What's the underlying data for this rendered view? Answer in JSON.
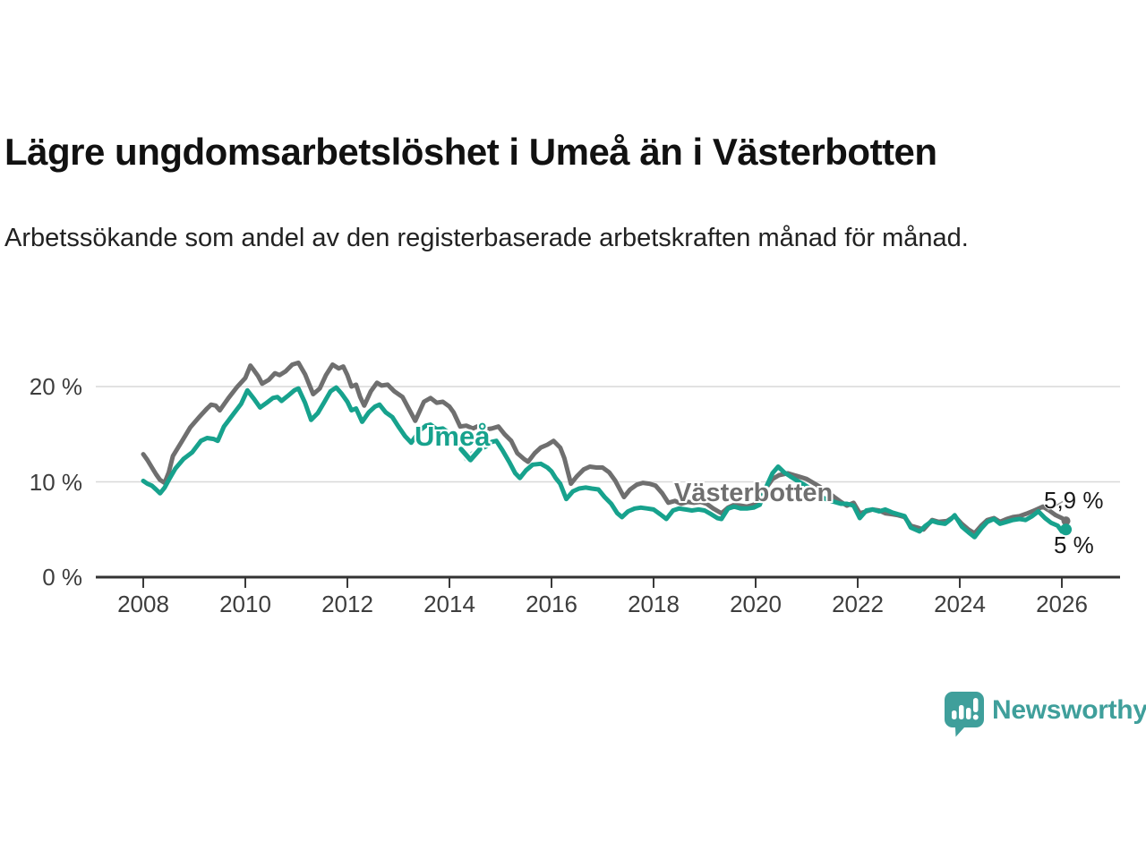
{
  "header": {
    "title": "Lägre ungdomsarbetslöshet i Umeå än i Västerbotten",
    "subtitle": "Arbetssökande som andel av den registerbaserade arbetskraften månad för månad."
  },
  "chart_data": {
    "type": "line",
    "unit": "%",
    "grid": "horizontal",
    "legend_position": "inline-annotations",
    "x_axis": {
      "ticks": [
        2008,
        2010,
        2012,
        2014,
        2016,
        2018,
        2020,
        2022,
        2024,
        2026
      ],
      "range": [
        2007.8,
        2026.3
      ]
    },
    "y_axis": {
      "ticks": [
        {
          "label": "20 %",
          "value": 20
        },
        {
          "label": "10 %",
          "value": 10
        },
        {
          "label": "0 %",
          "value": 0
        }
      ],
      "range": [
        0,
        23.5
      ]
    },
    "series": [
      {
        "name": "Västerbotten",
        "color": "#6f6f6f",
        "end_label": "5,9 %",
        "points": [
          [
            2008.0,
            12.9
          ],
          [
            2008.08,
            12.3
          ],
          [
            2008.17,
            11.5
          ],
          [
            2008.25,
            10.8
          ],
          [
            2008.33,
            10.2
          ],
          [
            2008.42,
            9.9
          ],
          [
            2008.5,
            11.0
          ],
          [
            2008.58,
            12.7
          ],
          [
            2008.75,
            14.2
          ],
          [
            2008.92,
            15.7
          ],
          [
            2009.08,
            16.7
          ],
          [
            2009.25,
            17.7
          ],
          [
            2009.33,
            18.1
          ],
          [
            2009.42,
            18.0
          ],
          [
            2009.5,
            17.5
          ],
          [
            2009.67,
            18.8
          ],
          [
            2009.83,
            19.9
          ],
          [
            2010.0,
            20.9
          ],
          [
            2010.1,
            22.2
          ],
          [
            2010.17,
            21.7
          ],
          [
            2010.25,
            21.1
          ],
          [
            2010.33,
            20.3
          ],
          [
            2010.46,
            20.7
          ],
          [
            2010.58,
            21.4
          ],
          [
            2010.67,
            21.2
          ],
          [
            2010.79,
            21.6
          ],
          [
            2010.92,
            22.3
          ],
          [
            2011.04,
            22.5
          ],
          [
            2011.17,
            21.3
          ],
          [
            2011.33,
            19.2
          ],
          [
            2011.46,
            19.8
          ],
          [
            2011.58,
            21.2
          ],
          [
            2011.71,
            22.3
          ],
          [
            2011.83,
            21.9
          ],
          [
            2011.92,
            22.1
          ],
          [
            2012.0,
            21.2
          ],
          [
            2012.08,
            20.0
          ],
          [
            2012.17,
            20.2
          ],
          [
            2012.25,
            18.9
          ],
          [
            2012.33,
            18.0
          ],
          [
            2012.46,
            19.5
          ],
          [
            2012.58,
            20.4
          ],
          [
            2012.67,
            20.1
          ],
          [
            2012.79,
            20.2
          ],
          [
            2012.92,
            19.5
          ],
          [
            2013.08,
            18.9
          ],
          [
            2013.25,
            17.2
          ],
          [
            2013.33,
            16.4
          ],
          [
            2013.5,
            18.4
          ],
          [
            2013.63,
            18.8
          ],
          [
            2013.75,
            18.3
          ],
          [
            2013.87,
            18.4
          ],
          [
            2014.0,
            17.9
          ],
          [
            2014.08,
            17.3
          ],
          [
            2014.21,
            15.8
          ],
          [
            2014.33,
            15.9
          ],
          [
            2014.46,
            15.6
          ],
          [
            2014.58,
            15.9
          ],
          [
            2014.71,
            15.5
          ],
          [
            2014.83,
            15.6
          ],
          [
            2014.96,
            15.8
          ],
          [
            2015.08,
            15.0
          ],
          [
            2015.21,
            14.3
          ],
          [
            2015.33,
            13.0
          ],
          [
            2015.46,
            12.4
          ],
          [
            2015.54,
            12.1
          ],
          [
            2015.67,
            13.0
          ],
          [
            2015.79,
            13.6
          ],
          [
            2015.92,
            13.9
          ],
          [
            2016.04,
            14.3
          ],
          [
            2016.17,
            13.6
          ],
          [
            2016.25,
            12.5
          ],
          [
            2016.38,
            9.8
          ],
          [
            2016.5,
            10.6
          ],
          [
            2016.63,
            11.3
          ],
          [
            2016.75,
            11.6
          ],
          [
            2016.88,
            11.5
          ],
          [
            2017.0,
            11.5
          ],
          [
            2017.13,
            11.0
          ],
          [
            2017.25,
            10.1
          ],
          [
            2017.42,
            8.4
          ],
          [
            2017.54,
            9.2
          ],
          [
            2017.67,
            9.7
          ],
          [
            2017.79,
            9.9
          ],
          [
            2017.92,
            9.8
          ],
          [
            2018.04,
            9.6
          ],
          [
            2018.17,
            8.8
          ],
          [
            2018.29,
            7.8
          ],
          [
            2018.42,
            8.0
          ],
          [
            2018.54,
            7.7
          ],
          [
            2018.67,
            7.9
          ],
          [
            2018.79,
            7.8
          ],
          [
            2018.92,
            7.9
          ],
          [
            2019.04,
            7.7
          ],
          [
            2019.17,
            7.2
          ],
          [
            2019.33,
            6.7
          ],
          [
            2019.46,
            7.3
          ],
          [
            2019.58,
            7.6
          ],
          [
            2019.71,
            7.5
          ],
          [
            2019.83,
            7.4
          ],
          [
            2019.96,
            7.6
          ],
          [
            2020.08,
            8.1
          ],
          [
            2020.21,
            9.4
          ],
          [
            2020.33,
            10.3
          ],
          [
            2020.46,
            10.7
          ],
          [
            2020.63,
            10.9
          ],
          [
            2020.75,
            10.7
          ],
          [
            2020.88,
            10.5
          ],
          [
            2021.0,
            10.3
          ],
          [
            2021.13,
            9.9
          ],
          [
            2021.25,
            9.5
          ],
          [
            2021.42,
            8.9
          ],
          [
            2021.54,
            8.4
          ],
          [
            2021.67,
            7.9
          ],
          [
            2021.79,
            7.5
          ],
          [
            2021.92,
            7.8
          ],
          [
            2022.04,
            6.7
          ],
          [
            2022.17,
            6.9
          ],
          [
            2022.29,
            7.1
          ],
          [
            2022.42,
            7.0
          ],
          [
            2022.54,
            6.7
          ],
          [
            2022.67,
            6.6
          ],
          [
            2022.79,
            6.5
          ],
          [
            2022.92,
            6.3
          ],
          [
            2023.04,
            5.4
          ],
          [
            2023.17,
            5.2
          ],
          [
            2023.29,
            5.0
          ],
          [
            2023.46,
            6.0
          ],
          [
            2023.58,
            5.8
          ],
          [
            2023.75,
            5.9
          ],
          [
            2023.9,
            6.4
          ],
          [
            2024.04,
            5.6
          ],
          [
            2024.17,
            5.0
          ],
          [
            2024.29,
            4.6
          ],
          [
            2024.42,
            5.4
          ],
          [
            2024.54,
            6.0
          ],
          [
            2024.67,
            6.2
          ],
          [
            2024.79,
            5.8
          ],
          [
            2024.92,
            6.1
          ],
          [
            2025.04,
            6.3
          ],
          [
            2025.17,
            6.4
          ],
          [
            2025.33,
            6.7
          ],
          [
            2025.46,
            7.0
          ],
          [
            2025.63,
            7.4
          ],
          [
            2025.75,
            7.0
          ],
          [
            2025.88,
            6.5
          ],
          [
            2026.0,
            6.2
          ],
          [
            2026.08,
            5.9
          ]
        ]
      },
      {
        "name": "Umeå",
        "color": "#17a28d",
        "end_label": "5 %",
        "points": [
          [
            2008.0,
            10.1
          ],
          [
            2008.08,
            9.8
          ],
          [
            2008.17,
            9.6
          ],
          [
            2008.25,
            9.2
          ],
          [
            2008.33,
            8.8
          ],
          [
            2008.42,
            9.4
          ],
          [
            2008.5,
            10.2
          ],
          [
            2008.63,
            11.4
          ],
          [
            2008.79,
            12.4
          ],
          [
            2008.96,
            13.1
          ],
          [
            2009.13,
            14.3
          ],
          [
            2009.25,
            14.6
          ],
          [
            2009.38,
            14.5
          ],
          [
            2009.46,
            14.3
          ],
          [
            2009.58,
            15.8
          ],
          [
            2009.75,
            17.0
          ],
          [
            2009.92,
            18.2
          ],
          [
            2010.04,
            19.6
          ],
          [
            2010.17,
            18.7
          ],
          [
            2010.29,
            17.8
          ],
          [
            2010.42,
            18.3
          ],
          [
            2010.54,
            18.8
          ],
          [
            2010.63,
            18.9
          ],
          [
            2010.71,
            18.5
          ],
          [
            2010.83,
            19.0
          ],
          [
            2010.96,
            19.6
          ],
          [
            2011.04,
            19.8
          ],
          [
            2011.17,
            18.3
          ],
          [
            2011.29,
            16.5
          ],
          [
            2011.42,
            17.2
          ],
          [
            2011.54,
            18.3
          ],
          [
            2011.67,
            19.5
          ],
          [
            2011.78,
            19.9
          ],
          [
            2011.88,
            19.3
          ],
          [
            2012.0,
            18.4
          ],
          [
            2012.08,
            17.5
          ],
          [
            2012.17,
            17.7
          ],
          [
            2012.29,
            16.3
          ],
          [
            2012.42,
            17.3
          ],
          [
            2012.54,
            17.9
          ],
          [
            2012.63,
            18.1
          ],
          [
            2012.75,
            17.3
          ],
          [
            2012.88,
            16.8
          ],
          [
            2013.0,
            15.8
          ],
          [
            2013.13,
            14.8
          ],
          [
            2013.25,
            14.1
          ],
          [
            2013.42,
            15.4
          ],
          [
            2013.54,
            15.9
          ],
          [
            2013.63,
            16.0
          ],
          [
            2013.75,
            15.5
          ],
          [
            2013.87,
            15.6
          ],
          [
            2014.0,
            15.1
          ],
          [
            2014.08,
            14.8
          ],
          [
            2014.21,
            13.5
          ],
          [
            2014.33,
            12.4
          ],
          [
            2014.46,
            13.0
          ],
          [
            2014.58,
            13.4
          ],
          [
            2014.71,
            13.7
          ],
          [
            2014.83,
            14.2
          ],
          [
            2014.92,
            14.3
          ],
          [
            2015.04,
            13.3
          ],
          [
            2015.17,
            12.1
          ],
          [
            2015.29,
            10.9
          ],
          [
            2015.38,
            10.4
          ],
          [
            2015.5,
            11.2
          ],
          [
            2015.63,
            11.8
          ],
          [
            2015.79,
            11.9
          ],
          [
            2015.92,
            11.5
          ],
          [
            2016.0,
            11.1
          ],
          [
            2016.08,
            10.4
          ],
          [
            2016.17,
            9.8
          ],
          [
            2016.29,
            8.2
          ],
          [
            2016.42,
            9.0
          ],
          [
            2016.54,
            9.3
          ],
          [
            2016.67,
            9.4
          ],
          [
            2016.79,
            9.3
          ],
          [
            2016.92,
            9.2
          ],
          [
            2017.04,
            8.4
          ],
          [
            2017.17,
            7.7
          ],
          [
            2017.29,
            6.7
          ],
          [
            2017.38,
            6.3
          ],
          [
            2017.5,
            6.9
          ],
          [
            2017.63,
            7.2
          ],
          [
            2017.75,
            7.3
          ],
          [
            2017.88,
            7.2
          ],
          [
            2018.0,
            7.1
          ],
          [
            2018.13,
            6.6
          ],
          [
            2018.25,
            6.1
          ],
          [
            2018.38,
            7.0
          ],
          [
            2018.5,
            7.2
          ],
          [
            2018.63,
            7.1
          ],
          [
            2018.75,
            7.0
          ],
          [
            2018.88,
            7.1
          ],
          [
            2019.0,
            7.0
          ],
          [
            2019.13,
            6.6
          ],
          [
            2019.25,
            6.2
          ],
          [
            2019.33,
            6.1
          ],
          [
            2019.46,
            7.2
          ],
          [
            2019.58,
            7.4
          ],
          [
            2019.71,
            7.2
          ],
          [
            2019.83,
            7.2
          ],
          [
            2019.96,
            7.3
          ],
          [
            2020.08,
            7.6
          ],
          [
            2020.21,
            9.5
          ],
          [
            2020.33,
            10.9
          ],
          [
            2020.44,
            11.6
          ],
          [
            2020.56,
            11.0
          ],
          [
            2020.67,
            10.6
          ],
          [
            2020.79,
            10.2
          ],
          [
            2020.92,
            9.8
          ],
          [
            2021.04,
            9.4
          ],
          [
            2021.17,
            8.9
          ],
          [
            2021.29,
            8.4
          ],
          [
            2021.42,
            8.1
          ],
          [
            2021.54,
            7.9
          ],
          [
            2021.67,
            7.7
          ],
          [
            2021.79,
            7.7
          ],
          [
            2021.92,
            7.5
          ],
          [
            2022.04,
            6.2
          ],
          [
            2022.17,
            7.0
          ],
          [
            2022.29,
            7.1
          ],
          [
            2022.42,
            6.9
          ],
          [
            2022.54,
            7.1
          ],
          [
            2022.67,
            6.8
          ],
          [
            2022.79,
            6.6
          ],
          [
            2022.92,
            6.4
          ],
          [
            2023.04,
            5.2
          ],
          [
            2023.21,
            4.8
          ],
          [
            2023.33,
            5.4
          ],
          [
            2023.46,
            5.9
          ],
          [
            2023.58,
            5.7
          ],
          [
            2023.71,
            5.6
          ],
          [
            2023.83,
            6.1
          ],
          [
            2023.9,
            6.5
          ],
          [
            2024.04,
            5.3
          ],
          [
            2024.17,
            4.7
          ],
          [
            2024.29,
            4.2
          ],
          [
            2024.42,
            5.1
          ],
          [
            2024.54,
            5.8
          ],
          [
            2024.67,
            6.1
          ],
          [
            2024.79,
            5.6
          ],
          [
            2024.92,
            5.8
          ],
          [
            2025.04,
            6.0
          ],
          [
            2025.17,
            6.1
          ],
          [
            2025.29,
            6.0
          ],
          [
            2025.42,
            6.4
          ],
          [
            2025.54,
            6.9
          ],
          [
            2025.67,
            6.2
          ],
          [
            2025.79,
            5.7
          ],
          [
            2025.92,
            5.4
          ],
          [
            2026.0,
            4.8
          ],
          [
            2026.08,
            5.0
          ]
        ]
      }
    ]
  },
  "branding": {
    "logo_text": "Newsworthy",
    "color": "#3f9f9b"
  }
}
